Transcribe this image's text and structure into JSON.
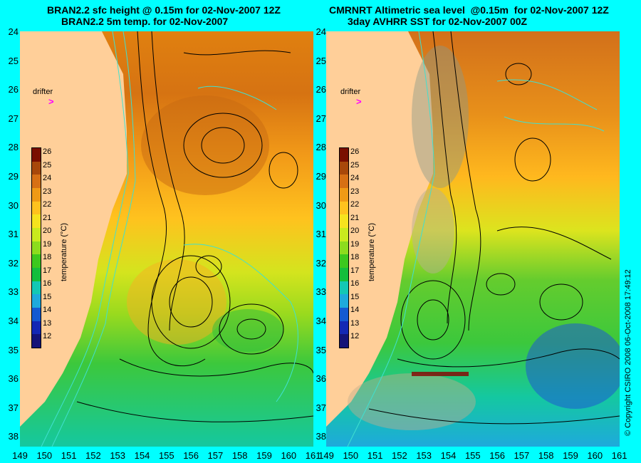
{
  "left_panel": {
    "title_line1": "BRAN2.2 sfc height @ 0.15m for 02-Nov-2007 12Z",
    "title_line2": "BRAN2.2 5m temp. for 02-Nov-2007",
    "drifter_label": "drifter",
    "drifter_marker": ">"
  },
  "right_panel": {
    "title_line1": "CMRNRT Altimetric sea level  @0.15m  for 02-Nov-2007 12Z",
    "title_line2": "3day AVHRR SST for 02-Nov-2007 00Z",
    "drifter_label": "drifter",
    "drifter_marker": ">"
  },
  "axes": {
    "y_labels": [
      "24",
      "25",
      "26",
      "27",
      "28",
      "29",
      "30",
      "31",
      "32",
      "33",
      "34",
      "35",
      "36",
      "37",
      "38"
    ],
    "x_labels": [
      "149",
      "150",
      "151",
      "152",
      "153",
      "154",
      "155",
      "156",
      "157",
      "158",
      "159",
      "160",
      "161"
    ]
  },
  "colorbar": {
    "title": "temperature (°C)",
    "ticks": [
      "26",
      "25",
      "24",
      "23",
      "22",
      "21",
      "20",
      "19",
      "18",
      "17",
      "16",
      "15",
      "14",
      "13",
      "12"
    ],
    "colors": [
      "#7A0F00",
      "#A8480A",
      "#D77014",
      "#F09A15",
      "#FFC21E",
      "#F6E31E",
      "#C9EA1E",
      "#8CDC1E",
      "#3CC81E",
      "#14BE3C",
      "#14C8B4",
      "#1EAADC",
      "#145AD2",
      "#1428B4",
      "#141478"
    ]
  },
  "copyright": "© Copyright CSIRO 2008    06-Oct-2008 17:49:12",
  "colors": {
    "background": "#00FFFF",
    "land": "#FFCF99",
    "drifter": "#FF00FF",
    "contour_ssh": "#000000",
    "contour_bathy": "#40E0D0"
  }
}
